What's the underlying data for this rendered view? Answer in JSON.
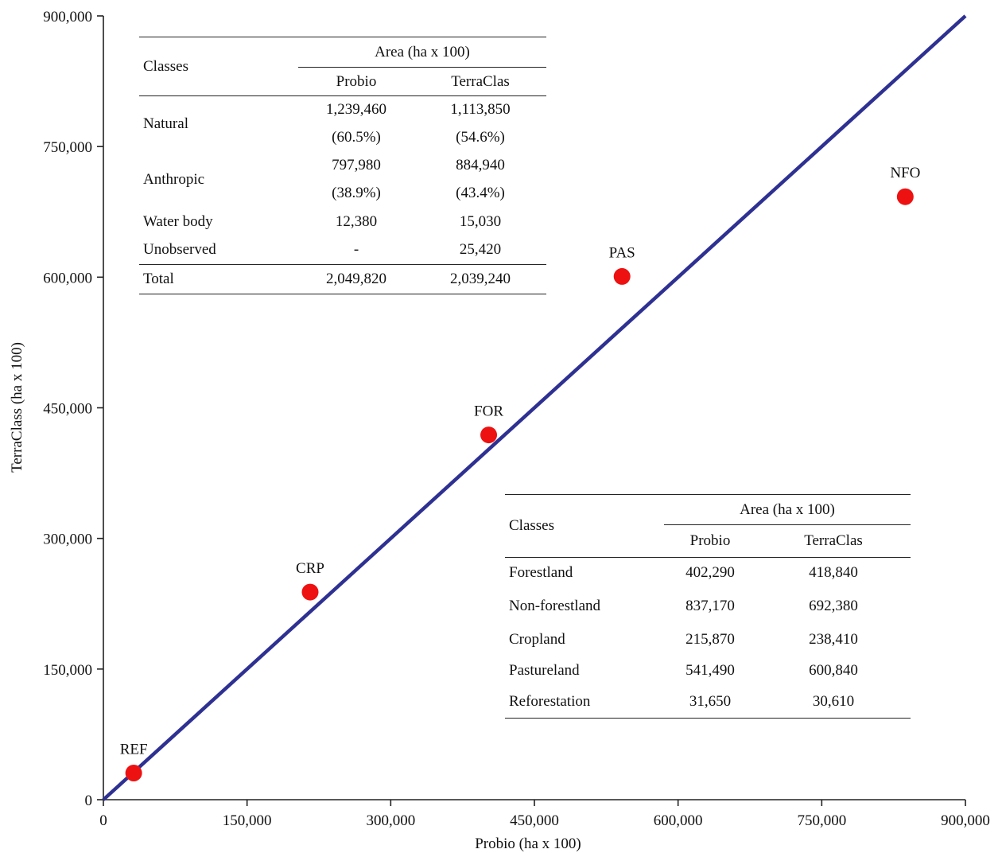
{
  "chart_data": {
    "type": "scatter",
    "xlabel": "Probio (ha x 100)",
    "ylabel": "TerraClass (ha x 100)",
    "xlim": [
      0,
      900000
    ],
    "ylim": [
      0,
      900000
    ],
    "xticks": [
      "0",
      "150,000",
      "300,000",
      "450,000",
      "600,000",
      "750,000",
      "900,000"
    ],
    "yticks": [
      "0",
      "150,000",
      "300,000",
      "450,000",
      "600,000",
      "750,000",
      "900,000"
    ],
    "grid": false,
    "reference_line": {
      "x": [
        0,
        900000
      ],
      "y": [
        0,
        900000
      ],
      "color": "#2e3192"
    },
    "points": [
      {
        "label": "REF",
        "x": 31650,
        "y": 30610
      },
      {
        "label": "CRP",
        "x": 215870,
        "y": 238410
      },
      {
        "label": "FOR",
        "x": 402290,
        "y": 418840
      },
      {
        "label": "PAS",
        "x": 541490,
        "y": 600840
      },
      {
        "label": "NFO",
        "x": 837170,
        "y": 692380
      }
    ],
    "point_color": "#ee1111"
  },
  "table_top": {
    "col_header": "Classes",
    "group_header": "Area (ha x 100)",
    "sub_headers": [
      "Probio",
      "TerraClas"
    ],
    "rows": [
      {
        "cls": "Natural",
        "probio": "1,239,460",
        "terra": "1,113,850",
        "probio_pct": "(60.5%)",
        "terra_pct": "(54.6%)"
      },
      {
        "cls": "Anthropic",
        "probio": "797,980",
        "terra": "884,940",
        "probio_pct": "(38.9%)",
        "terra_pct": "(43.4%)"
      },
      {
        "cls": "Water body",
        "probio": "12,380",
        "terra": "15,030"
      },
      {
        "cls": "Unobserved",
        "probio": "-",
        "terra": "25,420"
      }
    ],
    "total": {
      "cls": "Total",
      "probio": "2,049,820",
      "terra": "2,039,240"
    }
  },
  "table_bottom": {
    "col_header": "Classes",
    "group_header": "Area (ha x 100)",
    "sub_headers": [
      "Probio",
      "TerraClas"
    ],
    "rows": [
      {
        "cls": "Forestland",
        "probio": "402,290",
        "terra": "418,840"
      },
      {
        "cls": "Non-forestland",
        "probio": "837,170",
        "terra": "692,380"
      },
      {
        "cls": "Cropland",
        "probio": "215,870",
        "terra": "238,410"
      },
      {
        "cls": "Pastureland",
        "probio": "541,490",
        "terra": "600,840"
      },
      {
        "cls": "Reforestation",
        "probio": "31,650",
        "terra": "30,610"
      }
    ]
  }
}
